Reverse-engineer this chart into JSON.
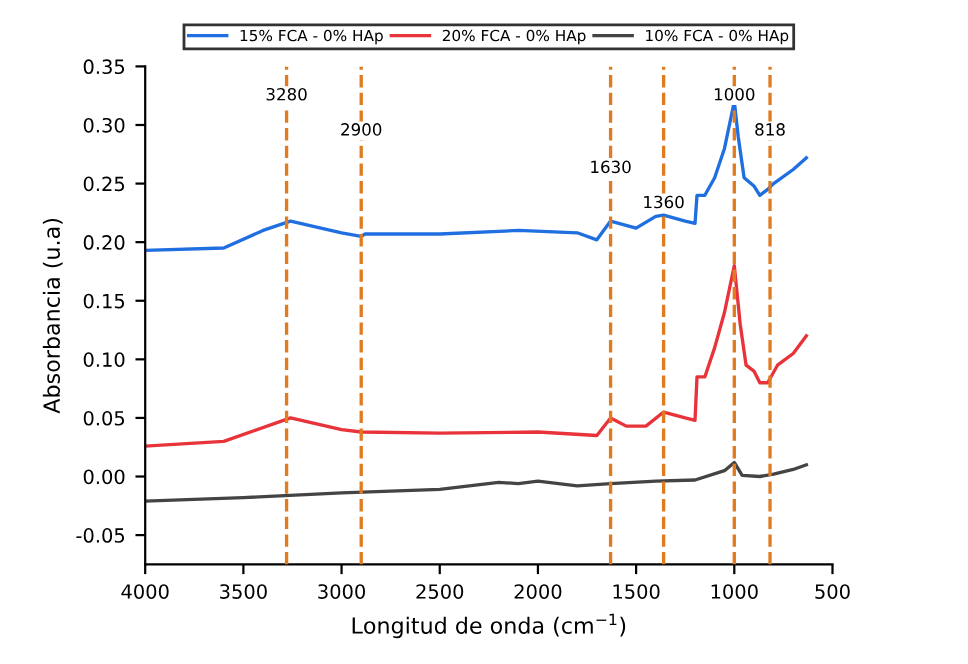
{
  "chart_data": {
    "type": "line",
    "xlabel": "Longitud de onda (cm$^{−1}$)",
    "ylabel": "Absorbancia (u.a)",
    "xlim": [
      4000,
      500
    ],
    "xticks": [
      4000,
      3500,
      3000,
      2500,
      2000,
      1500,
      1000,
      500
    ],
    "ylim": [
      -0.075,
      0.35
    ],
    "yticks": [
      {
        "value": -0.05,
        "label": "-0.05"
      },
      {
        "value": 0.0,
        "label": "0.00"
      },
      {
        "value": 0.05,
        "label": "0.05"
      },
      {
        "value": 0.1,
        "label": "0.10"
      },
      {
        "value": 0.15,
        "label": "0.15"
      },
      {
        "value": 0.2,
        "label": "0.20"
      },
      {
        "value": 0.25,
        "label": "0.25"
      },
      {
        "value": 0.3,
        "label": "0.30"
      },
      {
        "value": 0.35,
        "label": "0.35"
      }
    ],
    "legend": "top",
    "grid": false,
    "line_style": "solid",
    "marker": "none",
    "series": [
      {
        "name": "15% FCA - 0% HAp",
        "color": "#1f6fe0",
        "x": [
          4000,
          3600,
          3400,
          3260,
          3000,
          2900,
          2880,
          2500,
          2100,
          1800,
          1700,
          1630,
          1500,
          1400,
          1360,
          1250,
          1200,
          1190,
          1150,
          1100,
          1050,
          1000,
          980,
          950,
          900,
          870,
          830,
          800,
          700,
          633
        ],
        "values": [
          0.193,
          0.195,
          0.21,
          0.218,
          0.208,
          0.205,
          0.207,
          0.207,
          0.21,
          0.208,
          0.202,
          0.218,
          0.212,
          0.222,
          0.223,
          0.218,
          0.216,
          0.24,
          0.24,
          0.255,
          0.28,
          0.32,
          0.29,
          0.255,
          0.248,
          0.24,
          0.245,
          0.25,
          0.262,
          0.272
        ]
      },
      {
        "name": "20% FCA - 0% HAp",
        "color": "#e8333a",
        "x": [
          4000,
          3600,
          3260,
          3000,
          2900,
          2500,
          2000,
          1700,
          1630,
          1550,
          1450,
          1360,
          1250,
          1200,
          1190,
          1150,
          1100,
          1050,
          1000,
          970,
          940,
          900,
          870,
          830,
          780,
          700,
          633
        ],
        "values": [
          0.026,
          0.03,
          0.05,
          0.04,
          0.038,
          0.037,
          0.038,
          0.035,
          0.05,
          0.043,
          0.043,
          0.055,
          0.05,
          0.048,
          0.085,
          0.085,
          0.11,
          0.14,
          0.18,
          0.13,
          0.095,
          0.09,
          0.08,
          0.08,
          0.095,
          0.105,
          0.12
        ]
      },
      {
        "name": "10% FCA - 0% HAp",
        "color": "#444444",
        "x": [
          4000,
          3500,
          3000,
          2500,
          2200,
          2100,
          2000,
          1800,
          1630,
          1400,
          1200,
          1050,
          1000,
          960,
          870,
          800,
          700,
          633
        ],
        "values": [
          -0.021,
          -0.018,
          -0.014,
          -0.011,
          -0.005,
          -0.006,
          -0.004,
          -0.008,
          -0.006,
          -0.004,
          -0.003,
          0.005,
          0.012,
          0.001,
          0.0,
          0.002,
          0.006,
          0.01
        ]
      }
    ],
    "ref_lines": [
      {
        "axis": "x",
        "value": 3280,
        "color": "#e07b20",
        "line_style": "dashed"
      },
      {
        "axis": "x",
        "value": 2900,
        "color": "#e07b20",
        "line_style": "dashed"
      },
      {
        "axis": "x",
        "value": 1630,
        "color": "#e07b20",
        "line_style": "dashed"
      },
      {
        "axis": "x",
        "value": 1360,
        "color": "#e07b20",
        "line_style": "dashed"
      },
      {
        "axis": "x",
        "value": 1000,
        "color": "#e07b20",
        "line_style": "dashed"
      },
      {
        "axis": "x",
        "value": 818,
        "color": "#e07b20",
        "line_style": "dashed"
      }
    ],
    "annotations": [
      {
        "text": "3280",
        "x": 3280,
        "y": 0.325
      },
      {
        "text": "2900",
        "x": 2900,
        "y": 0.295
      },
      {
        "text": "1630",
        "x": 1630,
        "y": 0.263
      },
      {
        "text": "1360",
        "x": 1360,
        "y": 0.233
      },
      {
        "text": "1000",
        "x": 1000,
        "y": 0.325
      },
      {
        "text": "818",
        "x": 818,
        "y": 0.295
      }
    ]
  }
}
